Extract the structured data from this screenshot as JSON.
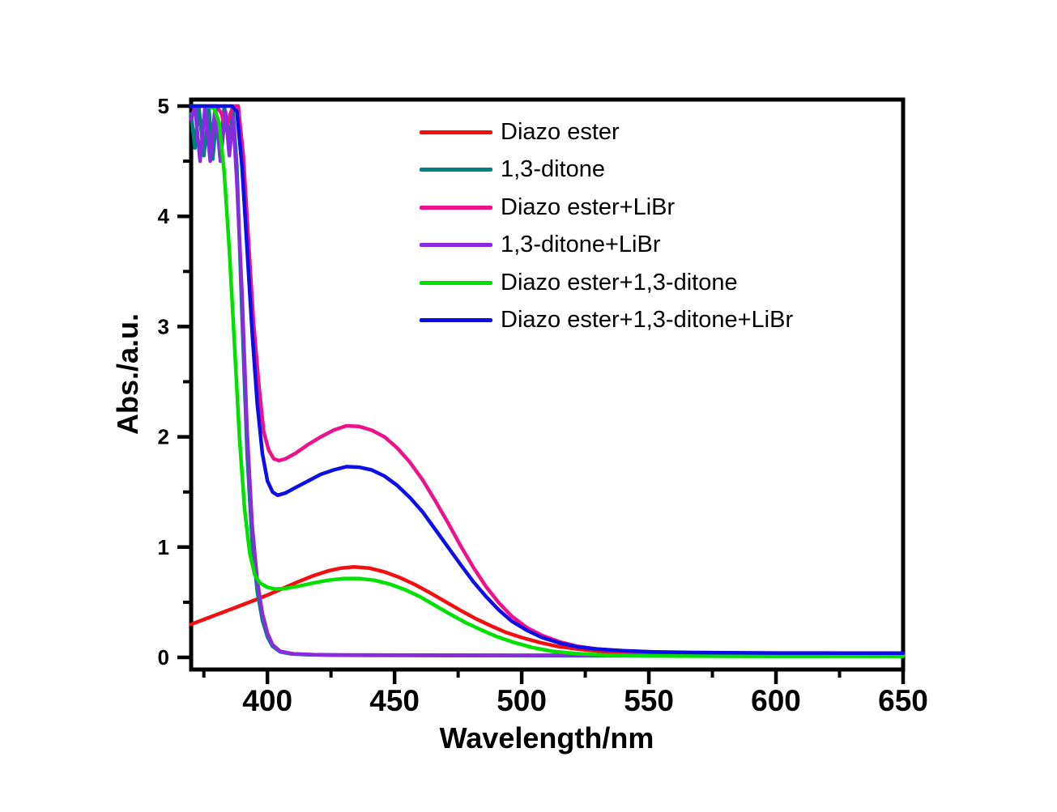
{
  "figure": {
    "background": "#ffffff",
    "title": ""
  },
  "chart_data": {
    "type": "line",
    "title": "",
    "xlabel": "Wavelength/nm",
    "ylabel": "Abs./a.u.",
    "xlim": [
      370,
      650
    ],
    "ylim": [
      0,
      5
    ],
    "x_ticks": [
      400,
      450,
      500,
      550,
      600,
      650
    ],
    "x_minor_ticks": [
      375,
      425,
      475,
      525,
      575,
      625
    ],
    "y_ticks": [
      0,
      1,
      2,
      3,
      4,
      5
    ],
    "y_minor_ticks": [
      0.5,
      1.5,
      2.5,
      3.5,
      4.5
    ],
    "grid": false,
    "axis_color": "#000000",
    "legend_position": "inside-top-center",
    "series": [
      {
        "name": "Diazo ester",
        "color": "#f10f0f",
        "points": [
          [
            370,
            0.3
          ],
          [
            378,
            0.37
          ],
          [
            386,
            0.44
          ],
          [
            394,
            0.51
          ],
          [
            400,
            0.565
          ],
          [
            406,
            0.625
          ],
          [
            412,
            0.685
          ],
          [
            418,
            0.74
          ],
          [
            424,
            0.785
          ],
          [
            429,
            0.81
          ],
          [
            434,
            0.82
          ],
          [
            440,
            0.81
          ],
          [
            446,
            0.775
          ],
          [
            452,
            0.725
          ],
          [
            458,
            0.66
          ],
          [
            464,
            0.585
          ],
          [
            470,
            0.505
          ],
          [
            476,
            0.425
          ],
          [
            482,
            0.35
          ],
          [
            488,
            0.285
          ],
          [
            494,
            0.225
          ],
          [
            500,
            0.18
          ],
          [
            507,
            0.135
          ],
          [
            514,
            0.1
          ],
          [
            522,
            0.075
          ],
          [
            531,
            0.055
          ],
          [
            541,
            0.04
          ],
          [
            553,
            0.032
          ],
          [
            567,
            0.027
          ],
          [
            583,
            0.023
          ],
          [
            600,
            0.021
          ],
          [
            620,
            0.02
          ],
          [
            650,
            0.02
          ]
        ]
      },
      {
        "name": "1,3-ditone",
        "color": "#008080",
        "points": [
          [
            370,
            4.93
          ],
          [
            371.5,
            4.62
          ],
          [
            373,
            5
          ],
          [
            375,
            4.55
          ],
          [
            377,
            4.97
          ],
          [
            378.5,
            4.52
          ],
          [
            380,
            4.9
          ],
          [
            381.5,
            4.58
          ],
          [
            383,
            5
          ],
          [
            385,
            4.72
          ],
          [
            386.5,
            4.95
          ],
          [
            388,
            4.45
          ],
          [
            390,
            3.1
          ],
          [
            392,
            1.85
          ],
          [
            394,
            1.05
          ],
          [
            396,
            0.6
          ],
          [
            398,
            0.34
          ],
          [
            400,
            0.185
          ],
          [
            402,
            0.1
          ],
          [
            405,
            0.05
          ],
          [
            409,
            0.032
          ],
          [
            416,
            0.024
          ],
          [
            425,
            0.02
          ],
          [
            440,
            0.018
          ],
          [
            470,
            0.016
          ],
          [
            520,
            0.015
          ],
          [
            580,
            0.013
          ],
          [
            650,
            0.012
          ]
        ]
      },
      {
        "name": "Diazo ester+LiBr",
        "color": "#ee1289",
        "points": [
          [
            370,
            5
          ],
          [
            380,
            5
          ],
          [
            382,
            4.93
          ],
          [
            383.5,
            4.78
          ],
          [
            385,
            4.9
          ],
          [
            386.5,
            5
          ],
          [
            388.5,
            5
          ],
          [
            390.5,
            4.55
          ],
          [
            392.5,
            3.8
          ],
          [
            394.5,
            3.05
          ],
          [
            396.5,
            2.5
          ],
          [
            398.5,
            2.05
          ],
          [
            400.5,
            1.88
          ],
          [
            402.5,
            1.8
          ],
          [
            404.5,
            1.785
          ],
          [
            407,
            1.8
          ],
          [
            411,
            1.85
          ],
          [
            416,
            1.93
          ],
          [
            421,
            2.0
          ],
          [
            426,
            2.06
          ],
          [
            431,
            2.1
          ],
          [
            436,
            2.095
          ],
          [
            441,
            2.06
          ],
          [
            446,
            2.0
          ],
          [
            451,
            1.9
          ],
          [
            456,
            1.77
          ],
          [
            461,
            1.61
          ],
          [
            466,
            1.42
          ],
          [
            471,
            1.22
          ],
          [
            476,
            1.01
          ],
          [
            481,
            0.815
          ],
          [
            486,
            0.64
          ],
          [
            491,
            0.495
          ],
          [
            496,
            0.375
          ],
          [
            502,
            0.27
          ],
          [
            508,
            0.2
          ],
          [
            515,
            0.14
          ],
          [
            522,
            0.1
          ],
          [
            530,
            0.075
          ],
          [
            540,
            0.055
          ],
          [
            552,
            0.042
          ],
          [
            566,
            0.032
          ],
          [
            582,
            0.027
          ],
          [
            600,
            0.023
          ],
          [
            625,
            0.021
          ],
          [
            650,
            0.02
          ]
        ]
      },
      {
        "name": "1,3-ditone+LiBr",
        "color": "#8a2be2",
        "points": [
          [
            370,
            4.88
          ],
          [
            371.5,
            5
          ],
          [
            373.5,
            4.5
          ],
          [
            375.5,
            5
          ],
          [
            377.5,
            4.5
          ],
          [
            379.5,
            5
          ],
          [
            381.5,
            4.5
          ],
          [
            383.5,
            4.95
          ],
          [
            385,
            4.55
          ],
          [
            386.5,
            4.9
          ],
          [
            388,
            4.3
          ],
          [
            390,
            3.3
          ],
          [
            392,
            2.05
          ],
          [
            394,
            1.2
          ],
          [
            396,
            0.7
          ],
          [
            398,
            0.4
          ],
          [
            400,
            0.22
          ],
          [
            402,
            0.115
          ],
          [
            405,
            0.055
          ],
          [
            410,
            0.032
          ],
          [
            418,
            0.025
          ],
          [
            430,
            0.022
          ],
          [
            460,
            0.02
          ],
          [
            520,
            0.019
          ],
          [
            580,
            0.018
          ],
          [
            650,
            0.018
          ]
        ]
      },
      {
        "name": "Diazo ester+1,3-ditone",
        "color": "#00e100",
        "points": [
          [
            370,
            5
          ],
          [
            376,
            5
          ],
          [
            379,
            4.98
          ],
          [
            381,
            4.85
          ],
          [
            383,
            4.4
          ],
          [
            385,
            3.7
          ],
          [
            387,
            2.85
          ],
          [
            389,
            2.0
          ],
          [
            391,
            1.35
          ],
          [
            393,
            0.95
          ],
          [
            395,
            0.75
          ],
          [
            397,
            0.675
          ],
          [
            400,
            0.635
          ],
          [
            403,
            0.62
          ],
          [
            407,
            0.625
          ],
          [
            412,
            0.645
          ],
          [
            418,
            0.675
          ],
          [
            424,
            0.7
          ],
          [
            430,
            0.715
          ],
          [
            436,
            0.715
          ],
          [
            442,
            0.7
          ],
          [
            448,
            0.665
          ],
          [
            454,
            0.615
          ],
          [
            460,
            0.55
          ],
          [
            466,
            0.47
          ],
          [
            472,
            0.39
          ],
          [
            478,
            0.315
          ],
          [
            484,
            0.25
          ],
          [
            490,
            0.19
          ],
          [
            497,
            0.135
          ],
          [
            504,
            0.09
          ],
          [
            512,
            0.055
          ],
          [
            521,
            0.035
          ],
          [
            532,
            0.022
          ],
          [
            545,
            0.015
          ],
          [
            562,
            0.012
          ],
          [
            590,
            0.01
          ],
          [
            620,
            0.01
          ],
          [
            650,
            0.01
          ]
        ]
      },
      {
        "name": "Diazo ester+1,3-ditone+LiBr",
        "color": "#0d0de8",
        "points": [
          [
            370,
            5
          ],
          [
            386,
            5
          ],
          [
            388,
            4.95
          ],
          [
            390,
            4.45
          ],
          [
            392,
            3.7
          ],
          [
            394,
            2.95
          ],
          [
            396,
            2.3
          ],
          [
            398,
            1.85
          ],
          [
            400,
            1.6
          ],
          [
            402,
            1.5
          ],
          [
            404,
            1.47
          ],
          [
            407,
            1.49
          ],
          [
            411,
            1.54
          ],
          [
            416,
            1.6
          ],
          [
            421,
            1.66
          ],
          [
            426,
            1.7
          ],
          [
            431,
            1.73
          ],
          [
            436,
            1.725
          ],
          [
            441,
            1.7
          ],
          [
            446,
            1.645
          ],
          [
            451,
            1.56
          ],
          [
            456,
            1.45
          ],
          [
            461,
            1.32
          ],
          [
            466,
            1.16
          ],
          [
            471,
            1.0
          ],
          [
            476,
            0.84
          ],
          [
            481,
            0.685
          ],
          [
            486,
            0.55
          ],
          [
            491,
            0.43
          ],
          [
            496,
            0.33
          ],
          [
            502,
            0.245
          ],
          [
            508,
            0.18
          ],
          [
            515,
            0.13
          ],
          [
            522,
            0.095
          ],
          [
            530,
            0.075
          ],
          [
            540,
            0.06
          ],
          [
            552,
            0.05
          ],
          [
            566,
            0.045
          ],
          [
            582,
            0.042
          ],
          [
            600,
            0.04
          ],
          [
            625,
            0.039
          ],
          [
            650,
            0.038
          ]
        ]
      }
    ]
  }
}
